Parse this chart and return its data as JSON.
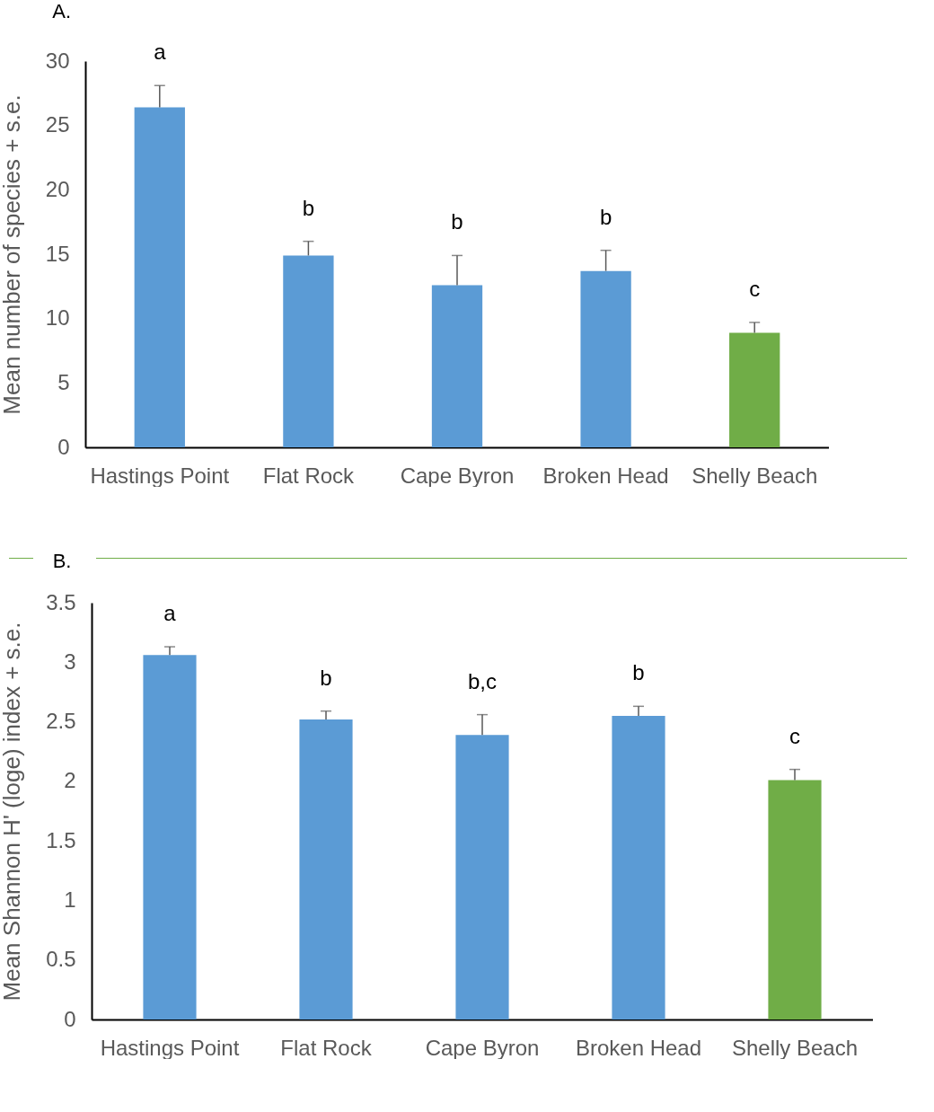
{
  "chart_data": [
    {
      "type": "bar",
      "title": "A.",
      "ylabel": "Mean number of species + s.e.",
      "categories": [
        "Hastings Point",
        "Flat Rock",
        "Cape Byron",
        "Broken Head",
        "Shelly Beach"
      ],
      "values": [
        26.4,
        14.9,
        12.6,
        13.7,
        8.9
      ],
      "colors": [
        "#5b9bd5",
        "#5b9bd5",
        "#5b9bd5",
        "#5b9bd5",
        "#70ad47"
      ],
      "errors": [
        [
          26.4,
          28.1
        ],
        [
          14.9,
          16.0
        ],
        [
          12.6,
          14.9
        ],
        [
          13.7,
          15.3
        ],
        [
          8.9,
          9.7
        ]
      ],
      "ylim": [
        0,
        30
      ],
      "yticks": [
        0,
        5,
        10,
        15,
        20,
        25,
        30
      ],
      "grid": false,
      "annotations": [
        {
          "text": "a",
          "x": "Hastings Point",
          "y": 28.1
        },
        {
          "text": "b",
          "x": "Flat Rock",
          "y": 16.0
        },
        {
          "text": "b",
          "x": "Cape Byron",
          "y": 14.9
        },
        {
          "text": "b",
          "x": "Broken Head",
          "y": 15.3
        },
        {
          "text": "c",
          "x": "Shelly Beach",
          "y": 9.7
        }
      ]
    },
    {
      "type": "bar",
      "title": "B.",
      "ylabel": "Mean Shannon H' (loge) index + s.e.",
      "categories": [
        "Hastings Point",
        "Flat Rock",
        "Cape Byron",
        "Broken Head",
        "Shelly Beach"
      ],
      "values": [
        3.06,
        2.52,
        2.39,
        2.55,
        2.01
      ],
      "colors": [
        "#5b9bd5",
        "#5b9bd5",
        "#5b9bd5",
        "#5b9bd5",
        "#70ad47"
      ],
      "errors": [
        [
          3.06,
          3.13
        ],
        [
          2.52,
          2.59
        ],
        [
          2.39,
          2.56
        ],
        [
          2.55,
          2.63
        ],
        [
          2.01,
          2.1
        ]
      ],
      "ylim": [
        0,
        3.5
      ],
      "yticks": [
        0,
        0.5,
        1,
        1.5,
        2,
        2.5,
        3,
        3.5
      ],
      "grid": false,
      "annotations": [
        {
          "text": "a",
          "x": "Hastings Point",
          "y": 3.13
        },
        {
          "text": "b",
          "x": "Flat Rock",
          "y": 2.59
        },
        {
          "text": "b,c",
          "x": "Cape Byron",
          "y": 2.56
        },
        {
          "text": "b",
          "x": "Broken Head",
          "y": 2.63
        },
        {
          "text": "c",
          "x": "Shelly Beach",
          "y": 2.1
        }
      ]
    }
  ]
}
